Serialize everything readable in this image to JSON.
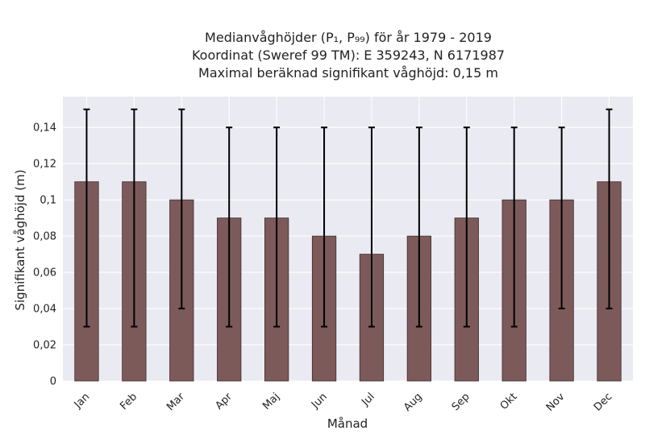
{
  "chart_data": {
    "type": "bar",
    "title_lines": [
      "Medianvåghöjder (P₁, P₉₉) för år 1979 - 2019",
      "Koordinat (Sweref 99 TM): E 359243, N 6171987",
      "Maximal beräknad signifikant våghöjd: 0,15 m"
    ],
    "xlabel": "Månad",
    "ylabel": "Signifikant våghöjd (m)",
    "categories": [
      "Jan",
      "Feb",
      "Mar",
      "Apr",
      "Maj",
      "Jun",
      "Jul",
      "Aug",
      "Sep",
      "Okt",
      "Nov",
      "Dec"
    ],
    "values": [
      0.11,
      0.11,
      0.1,
      0.09,
      0.09,
      0.08,
      0.07,
      0.08,
      0.09,
      0.1,
      0.1,
      0.11
    ],
    "error_low": [
      0.03,
      0.03,
      0.04,
      0.03,
      0.03,
      0.03,
      0.03,
      0.03,
      0.03,
      0.03,
      0.04,
      0.04
    ],
    "error_high": [
      0.15,
      0.15,
      0.15,
      0.14,
      0.14,
      0.14,
      0.14,
      0.14,
      0.14,
      0.14,
      0.14,
      0.15
    ],
    "yticks": [
      0,
      0.02,
      0.04,
      0.06,
      0.08,
      0.1,
      0.12,
      0.14
    ],
    "ytick_labels": [
      "0",
      "0,02",
      "0,04",
      "0,06",
      "0,08",
      "0,1",
      "0,12",
      "0,14"
    ],
    "ylim": [
      0,
      0.157
    ],
    "grid": true,
    "colors": {
      "bar": "#7d5a5a",
      "bar_edge": "#3d2b2b",
      "error": "#000000",
      "plot_bg": "#eaeaf2",
      "grid": "#ffffff"
    }
  }
}
